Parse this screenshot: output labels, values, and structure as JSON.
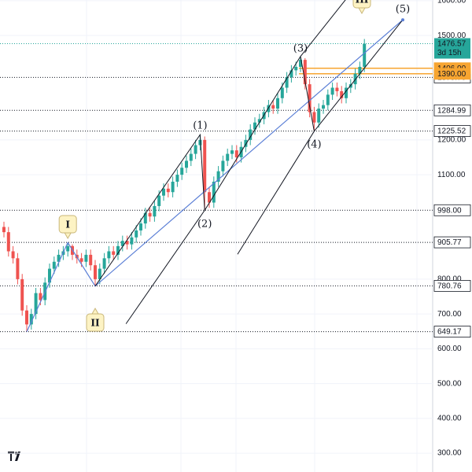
{
  "chart_data": {
    "type": "candlestick",
    "open": [
      950,
      935,
      880,
      860,
      800,
      710,
      670,
      700,
      760,
      740,
      790,
      830,
      850,
      870,
      880,
      895,
      870,
      860,
      850,
      870,
      840,
      800,
      830,
      860,
      880,
      870,
      895,
      910,
      900,
      920,
      940,
      960,
      990,
      980,
      1010,
      1040,
      1060,
      1050,
      1080,
      1100,
      1120,
      1140,
      1160,
      1185,
      1200,
      1050,
      1020,
      1080,
      1110,
      1140,
      1160,
      1170,
      1150,
      1180,
      1200,
      1230,
      1250,
      1260,
      1280,
      1300,
      1290,
      1320,
      1350,
      1380,
      1400,
      1410,
      1430,
      1360,
      1280,
      1250,
      1290,
      1300,
      1330,
      1350,
      1340,
      1320,
      1350,
      1360,
      1390,
      1410
    ],
    "high": [
      965,
      950,
      895,
      875,
      815,
      725,
      715,
      775,
      775,
      805,
      845,
      865,
      885,
      895,
      905,
      900,
      885,
      875,
      885,
      885,
      855,
      845,
      875,
      895,
      895,
      910,
      925,
      925,
      935,
      955,
      975,
      1005,
      1005,
      1025,
      1055,
      1075,
      1075,
      1095,
      1115,
      1135,
      1155,
      1175,
      1200,
      1215,
      1210,
      1065,
      1095,
      1125,
      1155,
      1175,
      1185,
      1185,
      1195,
      1215,
      1245,
      1265,
      1275,
      1295,
      1315,
      1315,
      1335,
      1365,
      1395,
      1415,
      1425,
      1440,
      1435,
      1375,
      1295,
      1305,
      1315,
      1345,
      1365,
      1365,
      1355,
      1365,
      1375,
      1405,
      1425,
      1490
    ],
    "low": [
      920,
      865,
      845,
      785,
      695,
      649,
      655,
      685,
      725,
      725,
      775,
      815,
      835,
      855,
      865,
      855,
      845,
      835,
      835,
      825,
      780,
      785,
      815,
      845,
      855,
      855,
      880,
      885,
      885,
      905,
      925,
      945,
      965,
      965,
      995,
      1025,
      1035,
      1035,
      1065,
      1085,
      1105,
      1125,
      1145,
      1170,
      998,
      1005,
      1005,
      1065,
      1095,
      1125,
      1145,
      1135,
      1135,
      1165,
      1185,
      1215,
      1235,
      1245,
      1265,
      1275,
      1275,
      1305,
      1335,
      1365,
      1385,
      1395,
      1345,
      1265,
      1225,
      1235,
      1275,
      1285,
      1315,
      1325,
      1305,
      1305,
      1335,
      1345,
      1375,
      1395
    ],
    "close": [
      935,
      880,
      860,
      800,
      710,
      670,
      700,
      760,
      740,
      790,
      830,
      850,
      870,
      880,
      895,
      870,
      860,
      850,
      870,
      840,
      800,
      830,
      860,
      880,
      870,
      895,
      910,
      900,
      920,
      940,
      960,
      990,
      980,
      1010,
      1040,
      1060,
      1050,
      1080,
      1100,
      1120,
      1140,
      1160,
      1185,
      1200,
      1050,
      1020,
      1080,
      1110,
      1140,
      1160,
      1170,
      1150,
      1180,
      1200,
      1230,
      1250,
      1260,
      1280,
      1300,
      1290,
      1320,
      1350,
      1380,
      1400,
      1410,
      1430,
      1360,
      1280,
      1250,
      1290,
      1300,
      1330,
      1350,
      1340,
      1320,
      1350,
      1360,
      1390,
      1410,
      1476
    ],
    "up_color": "#26a69a",
    "down_color": "#ef5350",
    "ylim": [
      246,
      1602
    ],
    "yticks": [
      {
        "value": 300,
        "label": "300.00"
      },
      {
        "value": 400,
        "label": "400.00"
      },
      {
        "value": 500,
        "label": "500.00"
      },
      {
        "value": 600,
        "label": "600.00"
      },
      {
        "value": 700,
        "label": "700.00"
      },
      {
        "value": 800,
        "label": "800.00"
      },
      {
        "value": 1100,
        "label": "1100.00"
      },
      {
        "value": 1200,
        "label": "1200.00"
      },
      {
        "value": 1500,
        "label": "1500.00"
      },
      {
        "value": 1600,
        "label": "1600.00"
      }
    ],
    "grid": true,
    "levels": [
      {
        "value": 1379.7,
        "label": "1379.70"
      },
      {
        "value": 1284.99,
        "label": "1284.99"
      },
      {
        "value": 1225.52,
        "label": "1225.52"
      },
      {
        "value": 998,
        "label": "998.00"
      },
      {
        "value": 905.77,
        "label": "905.77"
      },
      {
        "value": 780.76,
        "label": "780.76"
      },
      {
        "value": 649.17,
        "label": "649.17"
      }
    ],
    "zones": [
      {
        "value": 1406,
        "label": "1406.00"
      },
      {
        "value": 1390,
        "label": "1390.00"
      }
    ],
    "zone_color": "#f7a531",
    "last_price": {
      "value": 1476.57,
      "label": "1476.57",
      "countdown": "3d 15h",
      "color": "#26a69a"
    },
    "waves": [
      {
        "label": "I"
      },
      {
        "label": "II"
      },
      {
        "label": "(1)"
      },
      {
        "label": "(2)"
      },
      {
        "label": "(3)"
      },
      {
        "label": "(4)"
      },
      {
        "label": "III"
      }
    ],
    "wave_target": {
      "label": "(5)",
      "value": 1545
    }
  }
}
